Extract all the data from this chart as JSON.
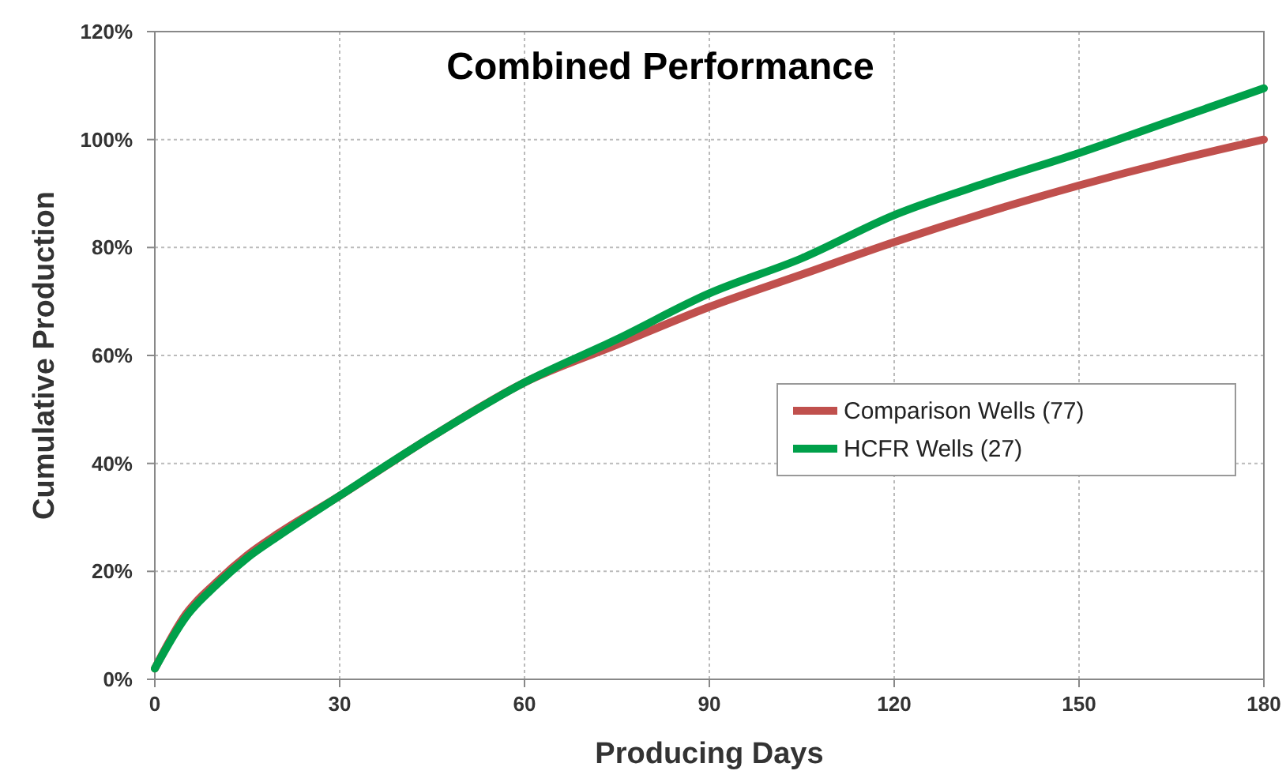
{
  "chart_data": {
    "type": "line",
    "title": "Combined Performance",
    "xlabel": "Producing Days",
    "ylabel": "Cumulative Production",
    "x": [
      0,
      5,
      10,
      15,
      20,
      30,
      45,
      60,
      75,
      90,
      105,
      120,
      135,
      150,
      165,
      180
    ],
    "series": [
      {
        "name": "Comparison Wells (77)",
        "color": "#c0504d",
        "values": [
          2,
          12,
          18,
          23,
          27,
          34,
          45,
          55,
          62,
          69,
          75,
          81,
          86.5,
          91.5,
          96,
          100
        ]
      },
      {
        "name": "HCFR Wells (27)",
        "color": "#00a04a",
        "values": [
          2,
          11.5,
          17.5,
          22.5,
          26.5,
          34,
          45,
          55,
          63,
          71.5,
          78,
          86,
          92,
          97.5,
          103.5,
          109.5
        ]
      }
    ],
    "xlim": [
      0,
      180
    ],
    "xticks": [
      0,
      30,
      60,
      90,
      120,
      150,
      180
    ],
    "ylim": [
      0,
      120
    ],
    "yticks": [
      {
        "value": 0,
        "label": "0%"
      },
      {
        "value": 20,
        "label": "20%"
      },
      {
        "value": 40,
        "label": "40%"
      },
      {
        "value": 60,
        "label": "60%"
      },
      {
        "value": 80,
        "label": "80%"
      },
      {
        "value": 100,
        "label": "100%"
      },
      {
        "value": 120,
        "label": "120%"
      }
    ],
    "grid": true,
    "legend": "right",
    "line_style": "solid",
    "marker": "none"
  }
}
